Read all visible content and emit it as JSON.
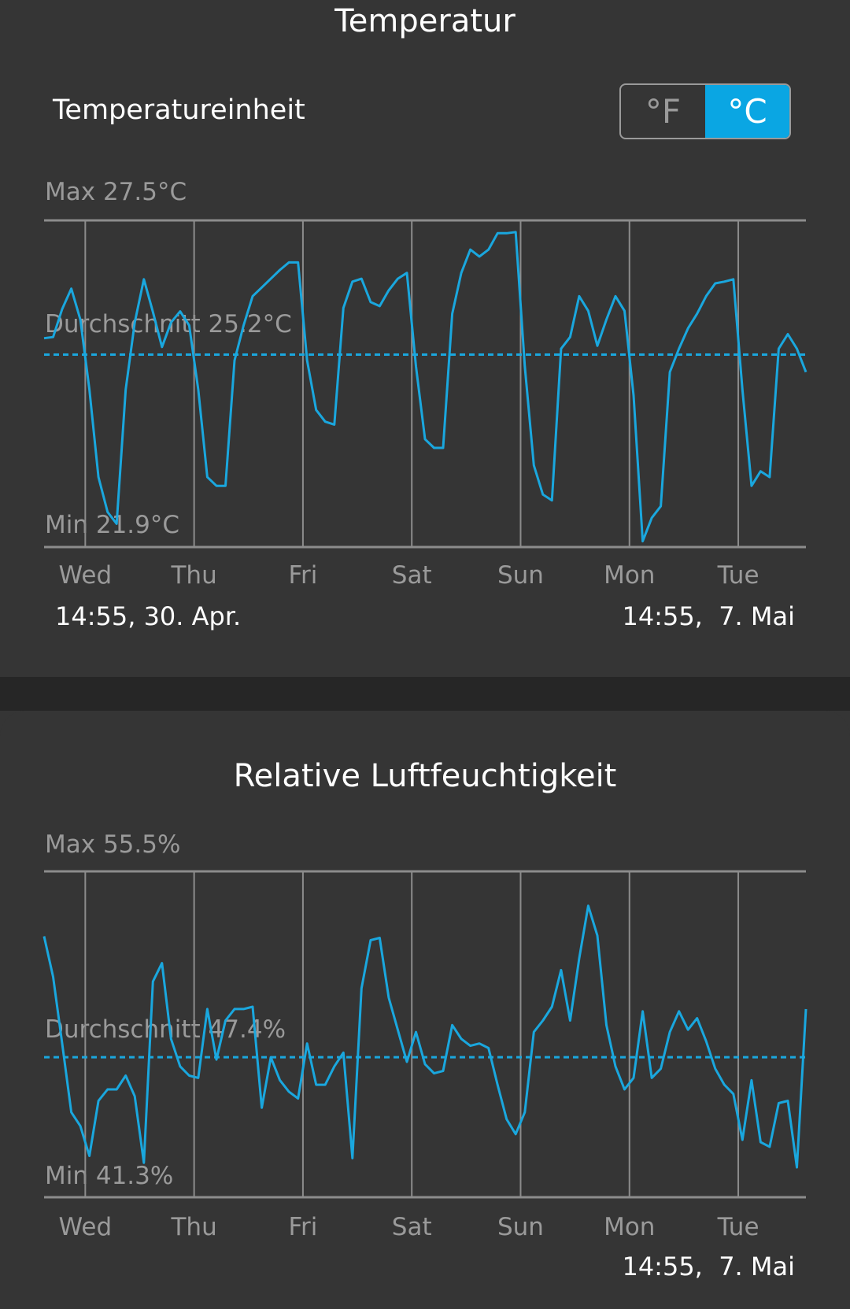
{
  "temperature": {
    "title": "Temperatur",
    "unit_label": "Temperatureinheit",
    "unit_options": [
      "°F",
      "°C"
    ],
    "unit_selected": "°C",
    "start_label": "14:55,  30. Apr.",
    "end_label": "14:55,  7. Mai"
  },
  "humidity": {
    "title": "Relative Luftfeuchtigkeit",
    "end_label": "14:55,  7. Mai"
  },
  "colors": {
    "line": "#1aa7de",
    "grid": "#8c8c8c",
    "label": "#9a9a9a",
    "accent": "#0aa6e3"
  },
  "chart_data": [
    {
      "type": "line",
      "title": "Temperatur",
      "start": "14:55,  30. Apr.",
      "end": "14:55,  7. Mai",
      "sample_interval_hours": 2,
      "x_tick_labels": [
        "Wed",
        "Thu",
        "Fri",
        "Sat",
        "Sun",
        "Mon",
        "Tue"
      ],
      "ylim": [
        21.9,
        27.5
      ],
      "max_label": "Max 27.5°C",
      "avg_label": "Durchschnitt 25.2°C",
      "min_label": "Min 21.9°C",
      "max": 27.5,
      "avg": 25.2,
      "min": 21.9,
      "grid": true,
      "values": [
        25.48,
        25.5,
        25.98,
        26.33,
        25.8,
        24.6,
        23.1,
        22.5,
        22.3,
        24.6,
        25.75,
        26.49,
        25.93,
        25.33,
        25.75,
        25.94,
        25.7,
        24.6,
        23.1,
        22.95,
        22.95,
        25.1,
        25.7,
        26.2,
        26.35,
        26.5,
        26.65,
        26.78,
        26.78,
        25.1,
        24.25,
        24.05,
        24.0,
        26.0,
        26.45,
        26.5,
        26.1,
        26.03,
        26.3,
        26.5,
        26.6,
        25.0,
        23.75,
        23.6,
        23.6,
        25.9,
        26.6,
        27.0,
        26.88,
        27.0,
        27.28,
        27.28,
        27.3,
        25.0,
        23.3,
        22.8,
        22.7,
        25.3,
        25.5,
        26.2,
        25.95,
        25.35,
        25.8,
        26.2,
        25.95,
        24.5,
        22.0,
        22.4,
        22.6,
        24.9,
        25.3,
        25.65,
        25.9,
        26.2,
        26.42,
        26.45,
        26.49,
        24.6,
        22.95,
        23.2,
        23.1,
        25.3,
        25.55,
        25.3,
        24.9
      ]
    },
    {
      "type": "line",
      "title": "Relative Luftfeuchtigkeit",
      "start": "14:55,  30. Apr.",
      "end": "14:55,  7. Mai",
      "sample_interval_hours": 2,
      "x_tick_labels": [
        "Wed",
        "Thu",
        "Fri",
        "Sat",
        "Sun",
        "Mon",
        "Tue"
      ],
      "ylim": [
        41.3,
        55.5
      ],
      "max_label": "Max 55.5%",
      "avg_label": "Durchschnitt 47.4%",
      "min_label": "Min 41.3%",
      "max": 55.5,
      "avg": 47.4,
      "min": 41.3,
      "grid": true,
      "values": [
        52.67,
        50.9,
        48.0,
        45.0,
        44.4,
        43.1,
        45.5,
        46.0,
        46.0,
        46.6,
        45.7,
        42.8,
        50.7,
        51.5,
        48.2,
        47.0,
        46.6,
        46.5,
        49.5,
        47.3,
        49.0,
        49.5,
        49.5,
        49.6,
        45.2,
        47.4,
        46.4,
        45.9,
        45.6,
        48.0,
        46.2,
        46.2,
        47.0,
        47.6,
        43.0,
        50.4,
        52.5,
        52.6,
        50.0,
        48.6,
        47.2,
        48.5,
        47.1,
        46.7,
        46.8,
        48.8,
        48.2,
        47.9,
        48.0,
        47.8,
        46.2,
        44.7,
        44.05,
        45.0,
        48.5,
        49.0,
        49.6,
        51.2,
        49.0,
        51.7,
        54.0,
        52.7,
        48.8,
        47.0,
        46.0,
        46.5,
        49.4,
        46.5,
        46.9,
        48.5,
        49.4,
        48.6,
        49.1,
        48.1,
        46.9,
        46.2,
        45.8,
        43.8,
        46.4,
        43.7,
        43.5,
        45.4,
        45.5,
        42.6,
        49.5
      ]
    }
  ]
}
